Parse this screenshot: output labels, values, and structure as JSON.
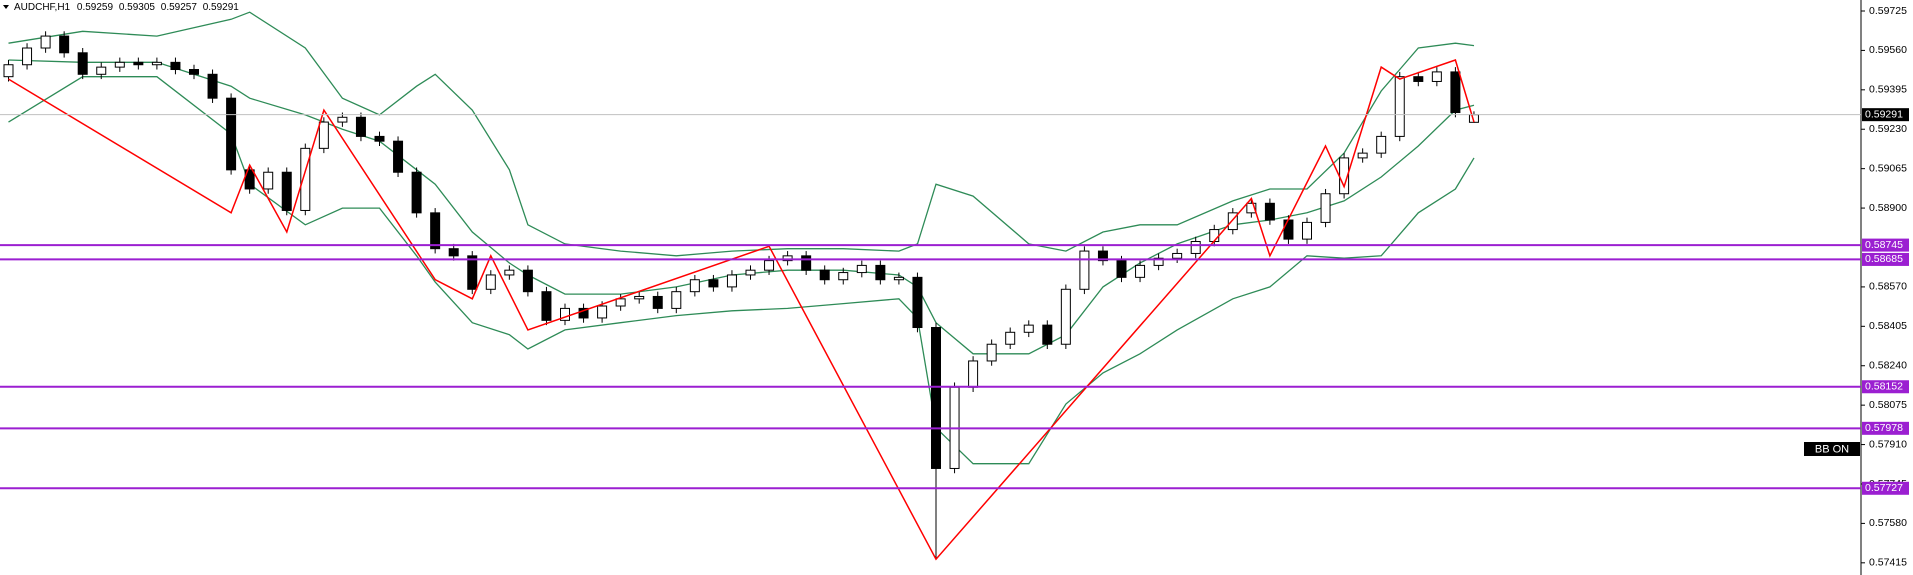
{
  "chart_data": {
    "type": "candlestick",
    "symbol": "AUDCHF,H1",
    "header_values": [
      0.59259,
      0.59305,
      0.59257,
      0.59291
    ],
    "ylim": [
      0.57364,
      0.59771
    ],
    "yticks": [
      0.59725,
      {
        "value": 0.5956,
        "label": "0.59560"
      },
      0.59395,
      {
        "value": 0.5923,
        "label": "0.59230"
      },
      0.59065,
      {
        "value": 0.589,
        "label": "0.58900"
      },
      {
        "value": 0.5857,
        "label": "0.58570"
      },
      0.58405,
      {
        "value": 0.5824,
        "label": "0.58240"
      },
      0.58075,
      {
        "value": 0.5791,
        "label": "0.57910"
      },
      0.57745,
      {
        "value": 0.5758,
        "label": "0.57580"
      },
      0.57415
    ],
    "up_color": "#ffffff",
    "down_color": "#000000",
    "candles": {
      "open": [
        0.5945,
        0.595,
        0.5957,
        0.5962,
        0.5955,
        0.5946,
        0.5949,
        0.5951,
        0.595,
        0.5951,
        0.5948,
        0.5946,
        0.5936,
        0.5906,
        0.5898,
        0.5905,
        0.5889,
        0.5915,
        0.5926,
        0.5928,
        0.592,
        0.5918,
        0.5905,
        0.5888,
        0.5873,
        0.587,
        0.5856,
        0.5862,
        0.5864,
        0.5855,
        0.5843,
        0.5848,
        0.5844,
        0.5849,
        0.5852,
        0.5853,
        0.5848,
        0.5855,
        0.586,
        0.5857,
        0.5862,
        0.5864,
        0.5868,
        0.587,
        0.5864,
        0.586,
        0.5863,
        0.5866,
        0.586,
        0.5861,
        0.584,
        0.5781,
        0.5815,
        0.5826,
        0.5833,
        0.5838,
        0.5841,
        0.5833,
        0.5856,
        0.5872,
        0.5868,
        0.5861,
        0.5866,
        0.5869,
        0.5871,
        0.5876,
        0.5881,
        0.5888,
        0.5892,
        0.5885,
        0.5877,
        0.5884,
        0.5896,
        0.5911,
        0.5913,
        0.592,
        0.5945,
        0.5943,
        0.5947,
        0.59259
      ],
      "high": [
        0.5952,
        0.5959,
        0.5964,
        0.5964,
        0.5957,
        0.5951,
        0.5953,
        0.5953,
        0.5953,
        0.5953,
        0.595,
        0.5948,
        0.5938,
        0.5908,
        0.5907,
        0.5907,
        0.5917,
        0.5928,
        0.593,
        0.593,
        0.5922,
        0.592,
        0.5907,
        0.589,
        0.5875,
        0.5872,
        0.5864,
        0.5866,
        0.5866,
        0.5857,
        0.585,
        0.585,
        0.5851,
        0.5854,
        0.5855,
        0.5855,
        0.5857,
        0.5862,
        0.5862,
        0.5864,
        0.5866,
        0.587,
        0.5872,
        0.5872,
        0.5866,
        0.5865,
        0.5868,
        0.5868,
        0.5863,
        0.5863,
        0.5842,
        0.5817,
        0.5828,
        0.5835,
        0.584,
        0.5843,
        0.5843,
        0.5858,
        0.5874,
        0.5874,
        0.587,
        0.5868,
        0.5871,
        0.5873,
        0.5878,
        0.5883,
        0.589,
        0.5894,
        0.5894,
        0.5887,
        0.5886,
        0.5898,
        0.5913,
        0.5915,
        0.5922,
        0.5947,
        0.5947,
        0.5949,
        0.5949,
        0.59305
      ],
      "low": [
        0.5943,
        0.5948,
        0.5955,
        0.5953,
        0.5944,
        0.5944,
        0.5947,
        0.5948,
        0.5948,
        0.5946,
        0.5944,
        0.5934,
        0.5904,
        0.5896,
        0.5896,
        0.5887,
        0.5887,
        0.5913,
        0.5924,
        0.5918,
        0.5916,
        0.5903,
        0.5886,
        0.5871,
        0.5868,
        0.5854,
        0.5854,
        0.586,
        0.5853,
        0.5841,
        0.5841,
        0.5842,
        0.5842,
        0.5847,
        0.585,
        0.5846,
        0.5846,
        0.5853,
        0.5855,
        0.5855,
        0.586,
        0.5862,
        0.5866,
        0.5862,
        0.5858,
        0.5858,
        0.5861,
        0.5858,
        0.5858,
        0.5838,
        0.5743,
        0.5779,
        0.5813,
        0.5824,
        0.5831,
        0.5836,
        0.5831,
        0.5831,
        0.5854,
        0.5866,
        0.5859,
        0.5859,
        0.5864,
        0.5867,
        0.5869,
        0.5874,
        0.5879,
        0.5886,
        0.5883,
        0.5875,
        0.5875,
        0.5882,
        0.5894,
        0.5909,
        0.5911,
        0.5918,
        0.5941,
        0.5941,
        0.5928,
        0.59257
      ],
      "close": [
        0.595,
        0.5957,
        0.5962,
        0.5955,
        0.5946,
        0.5949,
        0.5951,
        0.595,
        0.5951,
        0.5948,
        0.5946,
        0.5936,
        0.5906,
        0.5898,
        0.5905,
        0.5889,
        0.5915,
        0.5926,
        0.5928,
        0.592,
        0.5918,
        0.5905,
        0.5888,
        0.5873,
        0.587,
        0.5856,
        0.5862,
        0.5864,
        0.5855,
        0.5843,
        0.5848,
        0.5844,
        0.5849,
        0.5852,
        0.5853,
        0.5848,
        0.5855,
        0.586,
        0.5857,
        0.5862,
        0.5864,
        0.5868,
        0.587,
        0.5864,
        0.586,
        0.5863,
        0.5866,
        0.586,
        0.5861,
        0.584,
        0.5781,
        0.5815,
        0.5826,
        0.5833,
        0.5838,
        0.5841,
        0.5833,
        0.5856,
        0.5872,
        0.5868,
        0.5861,
        0.5866,
        0.5869,
        0.5871,
        0.5876,
        0.5881,
        0.5888,
        0.5892,
        0.5885,
        0.5877,
        0.5884,
        0.5896,
        0.5911,
        0.5913,
        0.592,
        0.5945,
        0.5943,
        0.5947,
        0.593,
        0.59291
      ]
    },
    "bands": [
      {
        "color": "#2e8b57",
        "x": [
          0,
          4,
          8,
          12,
          13,
          16,
          18,
          20,
          22,
          23,
          25,
          27,
          28,
          30,
          33,
          36,
          39,
          42,
          45,
          48,
          49,
          50,
          52,
          55,
          57,
          59,
          61,
          63,
          66,
          68,
          70,
          72,
          74,
          76,
          78,
          79
        ],
        "values": [
          0.5959,
          0.5964,
          0.5962,
          0.5969,
          0.5972,
          0.5957,
          0.5936,
          0.5929,
          0.5941,
          0.5946,
          0.5931,
          0.5906,
          0.5883,
          0.5875,
          0.5872,
          0.587,
          0.5872,
          0.5873,
          0.5873,
          0.5872,
          0.5875,
          0.59,
          0.5895,
          0.5875,
          0.5872,
          0.588,
          0.5883,
          0.5883,
          0.5893,
          0.5898,
          0.5898,
          0.5913,
          0.5939,
          0.5957,
          0.5959,
          0.5958
        ]
      },
      {
        "color": "#2e8b57",
        "x": [
          0,
          4,
          8,
          12,
          13,
          16,
          18,
          20,
          22,
          23,
          25,
          27,
          28,
          30,
          33,
          36,
          39,
          42,
          45,
          48,
          49,
          50,
          52,
          55,
          57,
          59,
          61,
          63,
          66,
          68,
          70,
          72,
          74,
          76,
          78,
          79
        ],
        "values": [
          0.5952,
          0.5951,
          0.5951,
          0.5941,
          0.5936,
          0.5929,
          0.5923,
          0.5918,
          0.5906,
          0.59,
          0.588,
          0.5867,
          0.5862,
          0.5854,
          0.5854,
          0.5857,
          0.5862,
          0.5864,
          0.5864,
          0.5862,
          0.5857,
          0.5842,
          0.5829,
          0.5829,
          0.5837,
          0.5857,
          0.5867,
          0.5875,
          0.5883,
          0.5885,
          0.5888,
          0.5893,
          0.5903,
          0.5916,
          0.5931,
          0.5933
        ]
      },
      {
        "color": "#2e8b57",
        "x": [
          0,
          4,
          8,
          12,
          13,
          16,
          18,
          20,
          22,
          23,
          25,
          27,
          28,
          30,
          33,
          36,
          39,
          42,
          45,
          48,
          49,
          50,
          52,
          55,
          57,
          59,
          61,
          63,
          66,
          68,
          70,
          72,
          74,
          76,
          78,
          79
        ],
        "values": [
          0.5926,
          0.5945,
          0.5945,
          0.5921,
          0.59,
          0.5883,
          0.589,
          0.589,
          0.587,
          0.5859,
          0.5842,
          0.5837,
          0.5831,
          0.5839,
          0.5842,
          0.5845,
          0.5847,
          0.5848,
          0.585,
          0.5852,
          0.5844,
          0.5798,
          0.5783,
          0.5783,
          0.5808,
          0.5821,
          0.5829,
          0.5839,
          0.5852,
          0.5857,
          0.587,
          0.5869,
          0.587,
          0.5888,
          0.5898,
          0.5911
        ]
      }
    ],
    "zigzag": {
      "color": "#ff0000",
      "x": [
        0,
        12,
        13,
        15,
        17,
        23,
        25,
        26,
        28,
        41,
        50,
        67,
        68,
        71,
        72,
        74,
        75,
        78,
        79
      ],
      "values": [
        0.5944,
        0.5888,
        0.5908,
        0.588,
        0.5931,
        0.586,
        0.5852,
        0.587,
        0.5839,
        0.5874,
        0.5743,
        0.5894,
        0.587,
        0.5916,
        0.5899,
        0.5949,
        0.5944,
        0.5952,
        0.5926
      ]
    },
    "levels": {
      "color": "#9b1fd1",
      "values": [
        0.58745,
        0.58685,
        0.58152,
        0.57978,
        0.57727
      ]
    },
    "last_price": 0.59291,
    "indicator_label": "BB ON"
  }
}
